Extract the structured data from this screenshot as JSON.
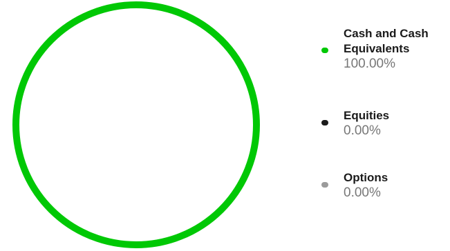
{
  "chart_data": {
    "type": "pie",
    "categories": [
      "Cash and Cash Equivalents",
      "Equities",
      "Options"
    ],
    "values": [
      100.0,
      0.0,
      0.0
    ],
    "value_labels": [
      "100.00%",
      "0.00%",
      "0.00%"
    ],
    "colors": [
      "#00c805",
      "#1b1b1b",
      "#9b9b9b"
    ],
    "legend_position": "right"
  }
}
